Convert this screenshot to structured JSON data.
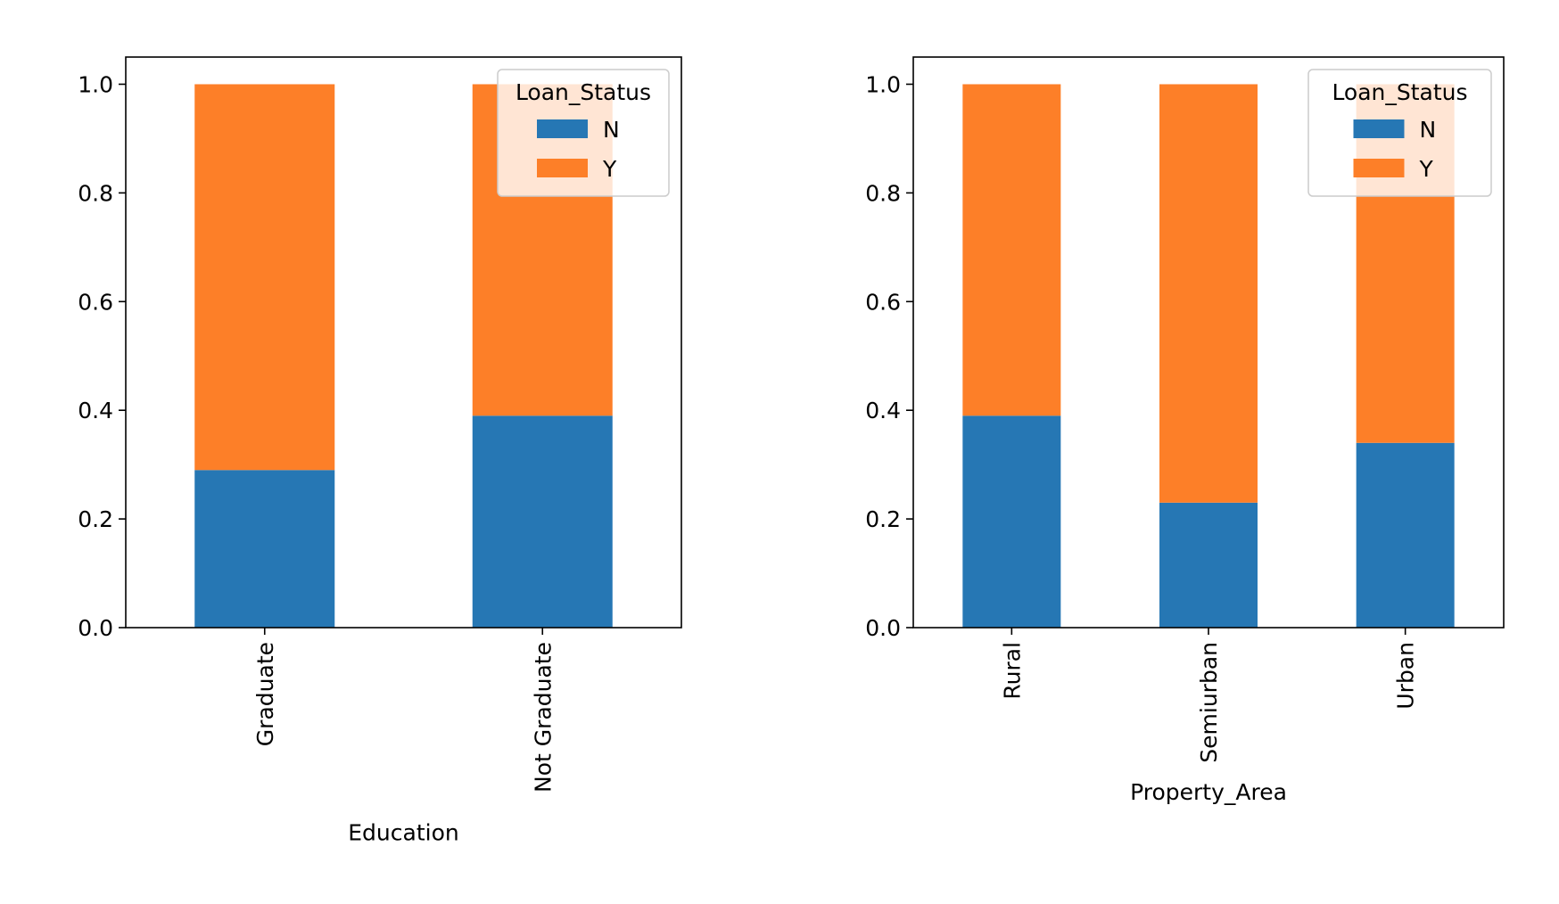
{
  "chart_data": [
    {
      "type": "bar",
      "stacked": true,
      "xlabel": "Education",
      "ylabel": "",
      "ylim": [
        0,
        1.05
      ],
      "yticks": [
        "0.0",
        "0.2",
        "0.4",
        "0.6",
        "0.8",
        "1.0"
      ],
      "categories": [
        "Graduate",
        "Not Graduate"
      ],
      "series": [
        {
          "name": "N",
          "color": "#2677b4",
          "values": [
            0.29,
            0.39
          ]
        },
        {
          "name": "Y",
          "color": "#fd7f28",
          "values": [
            0.71,
            0.61
          ]
        }
      ],
      "legend": {
        "title": "Loan_Status",
        "placement": "upper right"
      },
      "grid": false
    },
    {
      "type": "bar",
      "stacked": true,
      "xlabel": "Property_Area",
      "ylabel": "",
      "ylim": [
        0,
        1.05
      ],
      "yticks": [
        "0.0",
        "0.2",
        "0.4",
        "0.6",
        "0.8",
        "1.0"
      ],
      "categories": [
        "Rural",
        "Semiurban",
        "Urban"
      ],
      "series": [
        {
          "name": "N",
          "color": "#2677b4",
          "values": [
            0.39,
            0.23,
            0.34
          ]
        },
        {
          "name": "Y",
          "color": "#fd7f28",
          "values": [
            0.61,
            0.77,
            0.66
          ]
        }
      ],
      "legend": {
        "title": "Loan_Status",
        "placement": "upper right"
      },
      "grid": false
    }
  ]
}
